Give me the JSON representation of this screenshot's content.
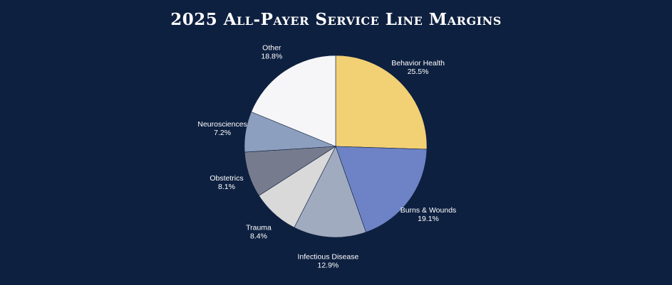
{
  "chart_data": {
    "type": "pie",
    "title": "2025 All-Payer Service Line Margins",
    "start_angle_deg": 0,
    "direction": "clockwise",
    "slices": [
      {
        "label": "Behavior Health",
        "value": 25.5,
        "value_label": "25.5%",
        "color": "#f2d074"
      },
      {
        "label": "Burns & Wounds",
        "value": 19.1,
        "value_label": "19.1%",
        "color": "#6e83c6"
      },
      {
        "label": "Infectious Disease",
        "value": 12.9,
        "value_label": "12.9%",
        "color": "#a1abbf"
      },
      {
        "label": "Trauma",
        "value": 8.4,
        "value_label": "8.4%",
        "color": "#d9d9d9"
      },
      {
        "label": "Obstetrics",
        "value": 8.1,
        "value_label": "8.1%",
        "color": "#767c8e"
      },
      {
        "label": "Neurosciences",
        "value": 7.2,
        "value_label": "7.2%",
        "color": "#8d9fbf"
      },
      {
        "label": "Other",
        "value": 18.8,
        "value_label": "18.8%",
        "color": "#f6f6f8"
      }
    ]
  },
  "colors": {
    "background": "#0e2040",
    "slice_border": "#0e2040",
    "text": "#ffffff"
  }
}
